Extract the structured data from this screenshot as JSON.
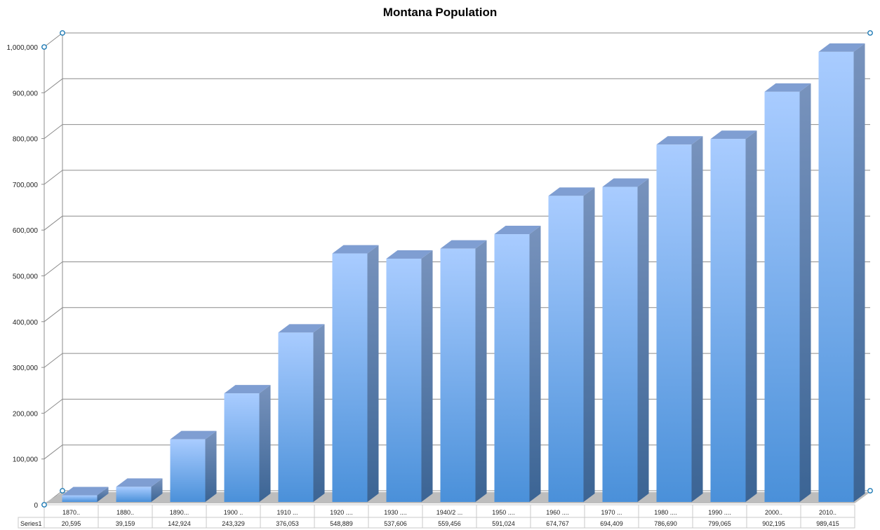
{
  "chart_data": {
    "type": "bar",
    "title": "Montana Population",
    "categories": [
      "1870..",
      "1880..",
      "1890...",
      "1900 ..",
      "1910 ...",
      "1920 ....",
      "1930 ....",
      "1940/2 ...",
      "1950 ....",
      "1960 ....",
      "1970 ...",
      "1980 ....",
      "1990 ....",
      "2000..",
      "2010.."
    ],
    "series": [
      {
        "name": "Series1",
        "values": [
          20595,
          39159,
          142924,
          243329,
          376053,
          548889,
          537606,
          559456,
          591024,
          674767,
          694409,
          786690,
          799065,
          902195,
          989415
        ],
        "value_labels": [
          "20,595",
          "39,159",
          "142,924",
          "243,329",
          "376,053",
          "548,889",
          "537,606",
          "559,456",
          "591,024",
          "674,767",
          "694,409",
          "786,690",
          "799,065",
          "902,195",
          "989,415"
        ]
      }
    ],
    "ylim": [
      0,
      1000000
    ],
    "yticks": [
      "0",
      "100,000",
      "200,000",
      "300,000",
      "400,000",
      "500,000",
      "600,000",
      "700,000",
      "800,000",
      "900,000",
      "1,000,000"
    ],
    "grid": true,
    "data_table": true,
    "xlabel": "",
    "ylabel": "",
    "colors": {
      "bar_front_top": "#a9ccff",
      "bar_front_bottom": "#4a90d9",
      "bar_top": "#7f9ed2",
      "bar_side": "#3f6696",
      "floor": "#bdbdbd",
      "gridline": "#8c8c8c"
    }
  }
}
